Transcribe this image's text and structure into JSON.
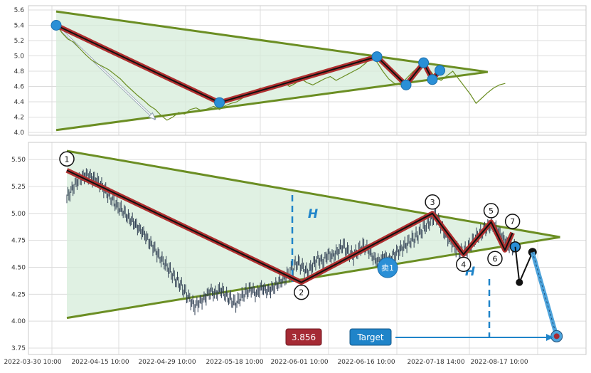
{
  "chart_data": [
    {
      "type": "line",
      "ylim": [
        4.0,
        5.6
      ],
      "yticks": [
        "5.6",
        "5.4",
        "5.2",
        "5.0",
        "4.8",
        "4.6",
        "4.4",
        "4.2",
        "4.0"
      ],
      "grid": true,
      "series": [
        {
          "values": [
            5.41,
            5.3,
            5.22,
            5.18,
            5.1,
            5.02,
            4.95,
            4.9,
            4.86,
            4.82,
            4.76,
            4.7,
            4.62,
            4.55,
            4.48,
            4.42,
            4.35,
            4.3,
            4.22,
            4.16,
            4.2,
            4.26,
            4.24,
            4.3,
            4.32,
            4.28,
            4.31,
            4.34,
            4.3,
            4.35,
            4.38,
            4.4,
            4.45,
            4.48,
            4.52,
            4.58,
            4.55,
            4.6,
            4.62,
            4.66,
            4.6,
            4.64,
            4.7,
            4.65,
            4.62,
            4.66,
            4.7,
            4.73,
            4.68,
            4.72,
            4.76,
            4.8,
            4.84,
            4.9,
            4.98,
            4.92,
            4.8,
            4.7,
            4.64,
            4.62,
            4.7,
            4.78,
            4.85,
            4.9,
            4.82,
            4.72,
            4.68,
            4.74,
            4.8,
            4.7,
            4.6,
            4.5,
            4.38,
            4.45,
            4.52,
            4.58,
            4.62,
            4.64
          ]
        }
      ],
      "pattern_points": [
        {
          "x": 0,
          "y": 5.4
        },
        {
          "x": 28,
          "y": 4.39
        },
        {
          "x": 55,
          "y": 4.99
        },
        {
          "x": 60,
          "y": 4.62
        },
        {
          "x": 63,
          "y": 4.91
        },
        {
          "x": 64.5,
          "y": 4.69
        },
        {
          "x": 65.8,
          "y": 4.81
        }
      ],
      "triangle": {
        "upper": [
          [
            0,
            5.58
          ],
          [
            74,
            4.79
          ]
        ],
        "lower": [
          [
            0,
            4.03
          ],
          [
            74,
            4.79
          ]
        ]
      },
      "arrow": [
        [
          0,
          5.4
        ],
        [
          17,
          4.17
        ]
      ]
    },
    {
      "type": "line",
      "ylim": [
        3.75,
        5.6
      ],
      "yticks": [
        "5.50",
        "5.25",
        "5.00",
        "4.75",
        "4.50",
        "4.25",
        "4.00",
        "3.75"
      ],
      "xticks": [
        "2022-03-30 10:00",
        "2022-04-15 10:00",
        "2022-04-29 10:00",
        "2022-05-18 10:00",
        "2022-06-01 10:00",
        "2022-06-16 10:00",
        "2022-07-18 14:00",
        "2022-08-17 10:00"
      ],
      "grid": true,
      "series": [
        {
          "values": [
            5.15,
            5.22,
            5.3,
            5.34,
            5.36,
            5.33,
            5.3,
            5.24,
            5.18,
            5.12,
            5.06,
            5.02,
            4.96,
            4.92,
            4.86,
            4.82,
            4.74,
            4.68,
            4.6,
            4.54,
            4.48,
            4.4,
            4.35,
            4.28,
            4.2,
            4.14,
            4.18,
            4.22,
            4.28,
            4.25,
            4.3,
            4.24,
            4.2,
            4.16,
            4.22,
            4.27,
            4.3,
            4.25,
            4.32,
            4.28,
            4.3,
            4.34,
            4.38,
            4.42,
            4.48,
            4.55,
            4.5,
            4.45,
            4.52,
            4.58,
            4.55,
            4.62,
            4.6,
            4.66,
            4.7,
            4.64,
            4.6,
            4.66,
            4.7,
            4.65,
            4.58,
            4.55,
            4.6,
            4.56,
            4.62,
            4.66,
            4.7,
            4.74,
            4.78,
            4.82,
            4.88,
            4.93,
            4.99,
            4.9,
            4.8,
            4.74,
            4.68,
            4.64,
            4.66,
            4.72,
            4.78,
            4.82,
            4.86,
            4.9,
            4.85,
            4.78,
            4.72,
            4.68,
            4.7
          ]
        }
      ],
      "pattern_points": [
        {
          "label": "1",
          "x": 0,
          "y": 5.4
        },
        {
          "label": "2",
          "x": 34,
          "y": 4.36
        },
        {
          "label": "3",
          "x": 53,
          "y": 5.0
        },
        {
          "label": "4",
          "x": 57.5,
          "y": 4.62
        },
        {
          "label": "5",
          "x": 61.5,
          "y": 4.92
        },
        {
          "label": "6",
          "x": 63.5,
          "y": 4.66
        },
        {
          "label": "7",
          "x": 64.6,
          "y": 4.82
        }
      ],
      "triangle": {
        "upper": [
          [
            0,
            5.58
          ],
          [
            71.5,
            4.78
          ]
        ],
        "lower": [
          [
            0,
            4.03
          ],
          [
            71.5,
            4.78
          ]
        ]
      },
      "breakout_point": {
        "x": 65,
        "y": 4.69
      },
      "projection": [
        [
          65,
          4.69
        ],
        [
          65.6,
          4.36
        ],
        [
          67.5,
          4.64
        ],
        [
          71,
          3.86
        ]
      ],
      "height_markers": {
        "label": "H"
      },
      "sell_label": "卖1",
      "target": {
        "label": "Target",
        "value": "3.856"
      }
    }
  ],
  "colors": {
    "triangle_line": "#6b8e23",
    "triangle_fill": "#d6ecd9",
    "pattern_outer": "#b03030",
    "pattern_inner": "#111111",
    "node_fill": "#2a8fd6",
    "price_line_top": "#6b8e23",
    "price_bars_bottom": "#2f3e52",
    "h_marker": "#1f84c9",
    "projection_line": "#4da3db",
    "target_box": "#1f84c9",
    "value_box": "#a52a34"
  }
}
